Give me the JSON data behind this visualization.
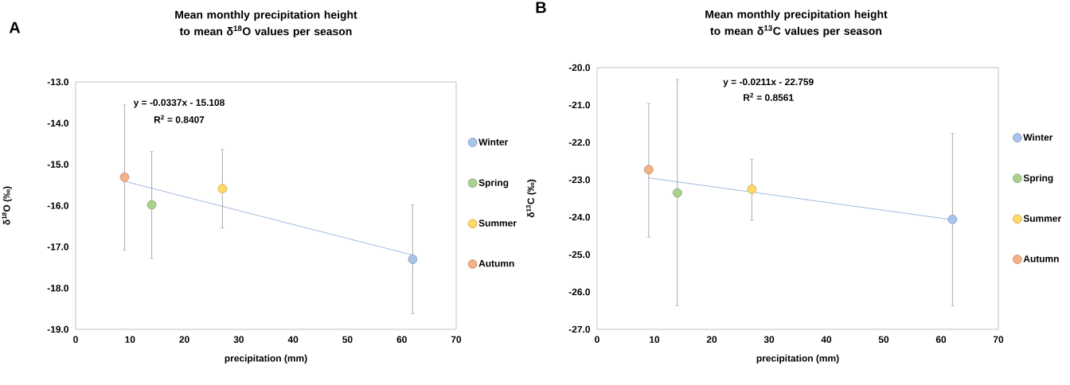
{
  "chart_data": [
    {
      "type": "scatter",
      "title": "Mean monthly precipitation height to mean δ$^{18}$O values per season",
      "xlabel": "precipitation (mm)",
      "ylabel": "δ$^{18}$O (‰)",
      "xlim": [
        0,
        70
      ],
      "ylim": [
        -19,
        -13
      ],
      "xticks": [
        0,
        10,
        20,
        30,
        40,
        50,
        60,
        70
      ],
      "yticks": [
        {
          "value": -19,
          "label": "-19.0"
        },
        {
          "value": -18,
          "label": "-18.0"
        },
        {
          "value": -17,
          "label": "-17.0"
        },
        {
          "value": -16,
          "label": "-16.0"
        },
        {
          "value": -15,
          "label": "-15.0"
        },
        {
          "value": -14,
          "label": "-14.0"
        },
        {
          "value": -13,
          "label": "-13.0"
        }
      ],
      "legend": "right",
      "annotations": [
        "A",
        "y = -0.0337x - 15.108",
        "R$^{2}$ = 0.8407"
      ],
      "series": [
        {
          "name": "Winter",
          "marker": "circle",
          "color": "#a9c4eb",
          "x": [
            62
          ],
          "values": [
            -17.3
          ],
          "errors": [
            [
              -18.62,
              -15.98
            ]
          ]
        },
        {
          "name": "Spring",
          "marker": "circle",
          "color": "#a9d18e",
          "x": [
            14
          ],
          "values": [
            -15.98
          ],
          "errors": [
            [
              -17.28,
              -14.69
            ]
          ]
        },
        {
          "name": "Summer",
          "marker": "circle",
          "color": "#ffd966",
          "x": [
            27
          ],
          "values": [
            -15.59
          ],
          "errors": [
            [
              -16.54,
              -14.64
            ]
          ]
        },
        {
          "name": "Autumn",
          "marker": "circle",
          "color": "#f4b183",
          "x": [
            9
          ],
          "values": [
            -15.31
          ],
          "errors": [
            [
              -17.08,
              -13.56
            ]
          ]
        },
        {
          "type": "line",
          "color": "#4472c4",
          "line_style": "dotted",
          "marker": "none",
          "x": [
            9,
            62
          ],
          "values": [
            -15.41,
            -17.2
          ]
        }
      ]
    },
    {
      "type": "scatter",
      "title": "Mean monthly precipitation height to mean δ$^{13}$C values per season",
      "xlabel": "precipitation (mm)",
      "ylabel": "δ$^{13}$C (‰)",
      "xlim": [
        0,
        70
      ],
      "ylim": [
        -27,
        -20
      ],
      "xticks": [
        0,
        10,
        20,
        30,
        40,
        50,
        60,
        70
      ],
      "yticks": [
        {
          "value": -27,
          "label": "-27.0"
        },
        {
          "value": -26,
          "label": "-26.0"
        },
        {
          "value": -25,
          "label": "-25.0"
        },
        {
          "value": -24,
          "label": "-24.0"
        },
        {
          "value": -23,
          "label": "-23.0"
        },
        {
          "value": -22,
          "label": "-22.0"
        },
        {
          "value": -21,
          "label": "-21.0"
        },
        {
          "value": -20,
          "label": "-20.0"
        }
      ],
      "legend": "right",
      "annotations": [
        "B",
        "y = -0.0211x - 22.759",
        "R$^{2}$ = 0.8561"
      ],
      "series": [
        {
          "name": "Winter",
          "marker": "circle",
          "color": "#a9c4eb",
          "x": [
            62
          ],
          "values": [
            -24.06
          ],
          "errors": [
            [
              -26.37,
              -21.76
            ]
          ]
        },
        {
          "name": "Spring",
          "marker": "circle",
          "color": "#a9d18e",
          "x": [
            14
          ],
          "values": [
            -23.35
          ],
          "errors": [
            [
              -26.37,
              -20.32
            ]
          ]
        },
        {
          "name": "Summer",
          "marker": "circle",
          "color": "#ffd966",
          "x": [
            27
          ],
          "values": [
            -23.25
          ],
          "errors": [
            [
              -24.08,
              -22.45
            ]
          ]
        },
        {
          "name": "Autumn",
          "marker": "circle",
          "color": "#f4b183",
          "x": [
            9
          ],
          "values": [
            -22.73
          ],
          "errors": [
            [
              -24.53,
              -20.96
            ]
          ]
        },
        {
          "type": "line",
          "color": "#4472c4",
          "line_style": "dotted",
          "marker": "none",
          "x": [
            9,
            62
          ],
          "values": [
            -22.95,
            -24.07
          ]
        }
      ]
    }
  ]
}
